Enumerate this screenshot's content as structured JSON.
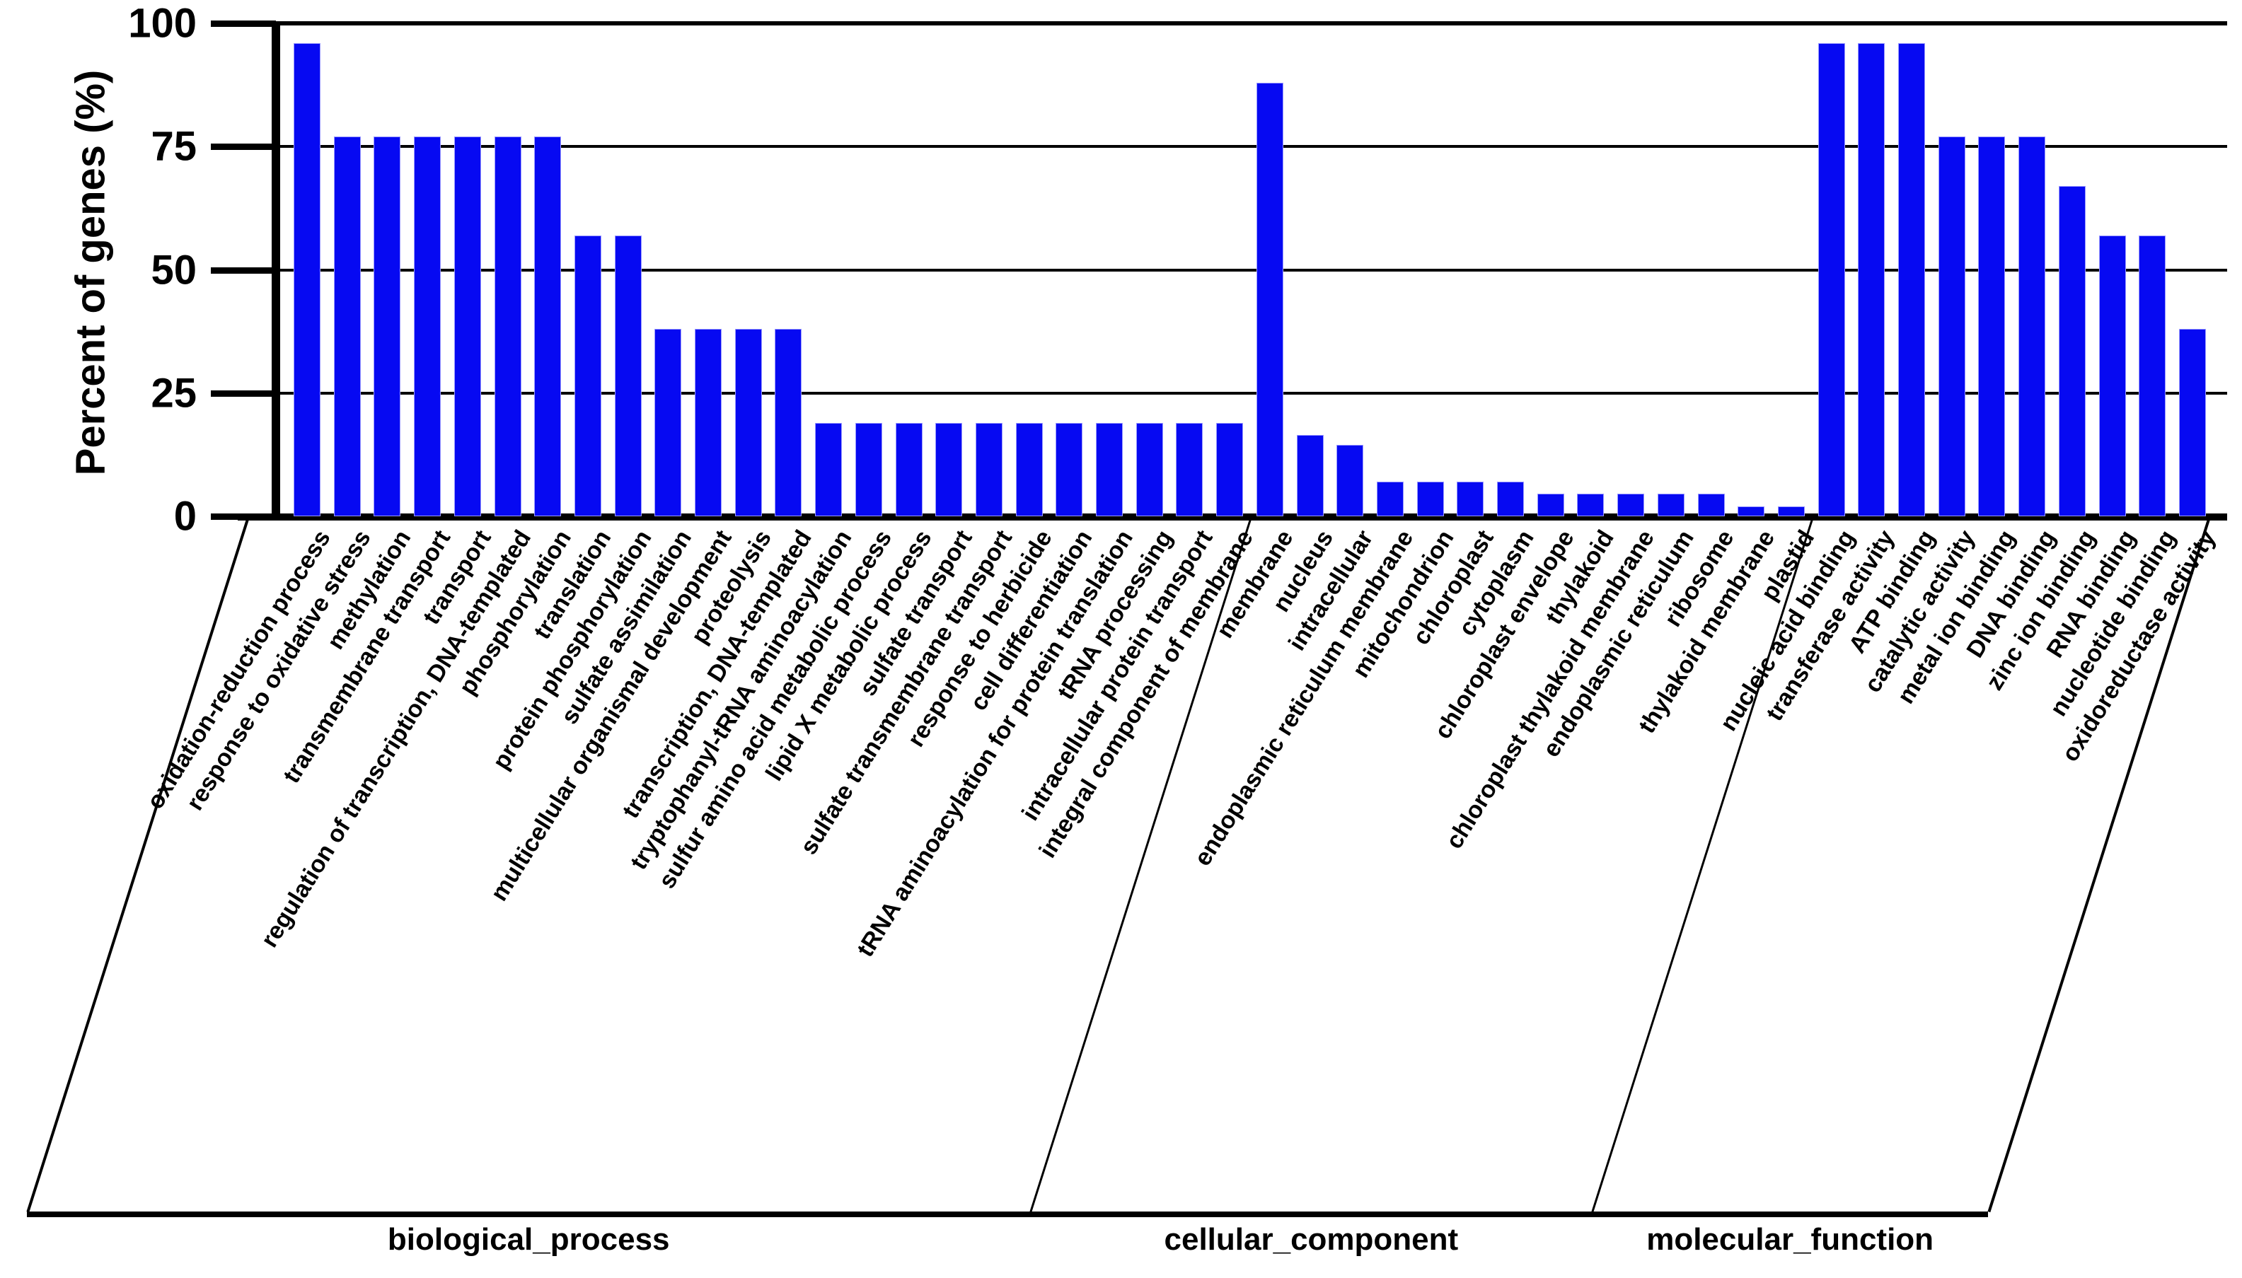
{
  "chart_data": {
    "type": "bar",
    "title": "",
    "ylabel": "Percent of genes (%)",
    "xlabel": "",
    "ylim": [
      0,
      100
    ],
    "yticks": [
      0,
      25,
      50,
      75,
      100
    ],
    "grid": "horizontal",
    "legend": "none",
    "bar_color": "#0609f2",
    "axis_color": "#000000",
    "groups": [
      {
        "name": "biological_process",
        "items": [
          {
            "label": "oxidation-reduction process",
            "value": 96
          },
          {
            "label": "response to oxidative stress",
            "value": 77
          },
          {
            "label": "methylation",
            "value": 77
          },
          {
            "label": "transmembrane transport",
            "value": 77
          },
          {
            "label": "transport",
            "value": 77
          },
          {
            "label": "regulation of transcription, DNA-templated",
            "value": 77
          },
          {
            "label": "phosphorylation",
            "value": 77
          },
          {
            "label": "translation",
            "value": 57
          },
          {
            "label": "protein phosphorylation",
            "value": 57
          },
          {
            "label": "sulfate assimilation",
            "value": 38
          },
          {
            "label": "multicellular organismal development",
            "value": 38
          },
          {
            "label": "proteolysis",
            "value": 38
          },
          {
            "label": "transcription, DNA-templated",
            "value": 38
          },
          {
            "label": "tryptophanyl-tRNA aminoacylation",
            "value": 19
          },
          {
            "label": "sulfur amino acid metabolic process",
            "value": 19
          },
          {
            "label": "lipid X metabolic process",
            "value": 19
          },
          {
            "label": "sulfate transport",
            "value": 19
          },
          {
            "label": "sulfate transmembrane transport",
            "value": 19
          },
          {
            "label": "response to herbicide",
            "value": 19
          },
          {
            "label": "cell differentiation",
            "value": 19
          },
          {
            "label": "tRNA aminoacylation for protein translation",
            "value": 19
          },
          {
            "label": "tRNA processing",
            "value": 19
          },
          {
            "label": "intracellular protein transport",
            "value": 19
          },
          {
            "label": "integral component of membrane",
            "value": 19
          }
        ]
      },
      {
        "name": "cellular_component",
        "items": [
          {
            "label": "membrane",
            "value": 88
          },
          {
            "label": "nucleus",
            "value": 16.5
          },
          {
            "label": "intracellular",
            "value": 14.5
          },
          {
            "label": "endoplasmic reticulum membrane",
            "value": 7
          },
          {
            "label": "mitochondrion",
            "value": 7
          },
          {
            "label": "chloroplast",
            "value": 7
          },
          {
            "label": "cytoplasm",
            "value": 7
          },
          {
            "label": "chloroplast envelope",
            "value": 4.6
          },
          {
            "label": "thylakoid",
            "value": 4.6
          },
          {
            "label": "chloroplast thylakoid membrane",
            "value": 4.6
          },
          {
            "label": "endoplasmic reticulum",
            "value": 4.6
          },
          {
            "label": "ribosome",
            "value": 4.6
          },
          {
            "label": "thylakoid membrane",
            "value": 2
          },
          {
            "label": "plastid",
            "value": 2
          }
        ]
      },
      {
        "name": "molecular_function",
        "items": [
          {
            "label": "nucleic acid binding",
            "value": 96
          },
          {
            "label": "transferase activity",
            "value": 96
          },
          {
            "label": "ATP binding",
            "value": 96
          },
          {
            "label": "catalytic activity",
            "value": 77
          },
          {
            "label": "metal ion binding",
            "value": 77
          },
          {
            "label": "DNA binding",
            "value": 77
          },
          {
            "label": "zinc ion binding",
            "value": 67
          },
          {
            "label": "RNA binding",
            "value": 57
          },
          {
            "label": "nucleotide binding",
            "value": 57
          },
          {
            "label": "oxidoreductase activity",
            "value": 38
          }
        ]
      }
    ]
  }
}
